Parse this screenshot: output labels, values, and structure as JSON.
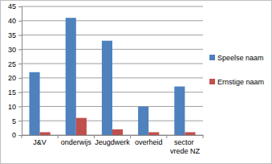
{
  "chart_data": {
    "type": "bar",
    "categories": [
      "J&V",
      "onderwijs",
      "Jeugdwerk",
      "overheid",
      "sector vrede NZ"
    ],
    "series": [
      {
        "name": "Speelse naam",
        "color": "#4f81bd",
        "values": [
          22,
          41,
          33,
          10,
          17
        ]
      },
      {
        "name": "Ernstige naam",
        "color": "#c0504d",
        "values": [
          1,
          6,
          2,
          1,
          1
        ]
      }
    ],
    "ylim": [
      0,
      45
    ],
    "yticks": [
      0,
      5,
      10,
      15,
      20,
      25,
      30,
      35,
      40,
      45
    ],
    "grid": true,
    "legend": "right"
  }
}
